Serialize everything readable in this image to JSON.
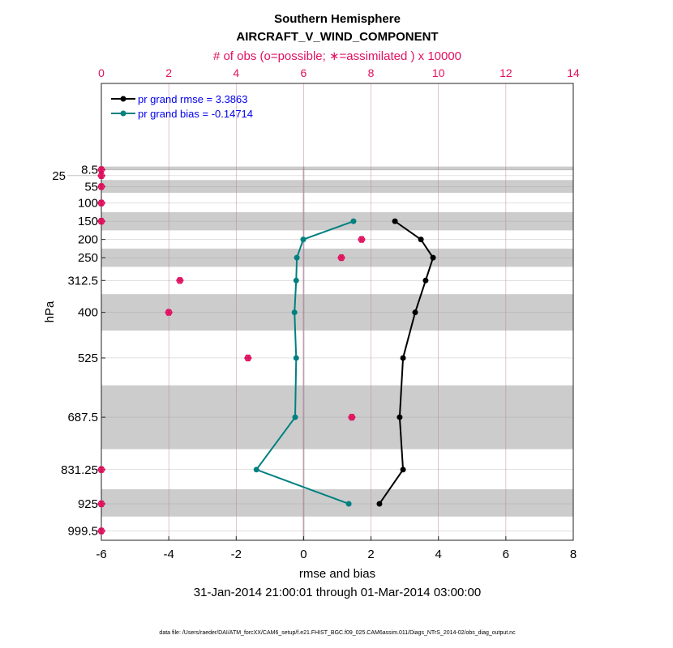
{
  "chart_data": {
    "type": "line",
    "title": "Southern Hemisphere",
    "subtitle": "AIRCRAFT_V_WIND_COMPONENT",
    "top_axis_label": "# of obs (o=possible; ∗=assimilated ) x 10000",
    "xlabel": "rmse and bias",
    "ylabel": "hPa",
    "date_range": "31-Jan-2014 21:00:01 through 01-Mar-2014 03:00:00",
    "footer": "data file: /Users/raeder/DAI/ATM_forcXX/CAM6_setup/f.e21.FHIST_BGC.f09_025.CAM6assim.011/Diags_NTrS_2014-02/obs_diag_output.nc",
    "xlim": [
      -6,
      8
    ],
    "xticks": [
      "-6",
      "-4",
      "-2",
      "0",
      "2",
      "4",
      "6",
      "8"
    ],
    "top_xlim": [
      0,
      14
    ],
    "top_xticks": [
      "0",
      "2",
      "4",
      "6",
      "8",
      "10",
      "12",
      "14"
    ],
    "ylim_hpa": [
      -228,
      1025
    ],
    "levels": [
      8.5,
      25,
      55,
      100,
      150,
      200,
      250,
      312.5,
      400,
      525,
      687.5,
      831.25,
      925,
      999.5
    ],
    "level_labels": [
      "8.5",
      "25",
      "55",
      "100",
      "150",
      "200",
      "250",
      "312.5",
      "400",
      "525",
      "687.5",
      "831.25",
      "925",
      "999.5"
    ],
    "bands_hpa": [
      [
        0,
        10
      ],
      [
        37,
        72
      ],
      [
        125,
        175
      ],
      [
        225,
        275
      ],
      [
        350,
        450
      ],
      [
        600,
        775
      ],
      [
        885,
        960
      ]
    ],
    "series": [
      {
        "name": "pr grand rmse = 3.3863",
        "color": "#000000",
        "levels": [
          150,
          200,
          250,
          312.5,
          400,
          525,
          687.5,
          831.25,
          925
        ],
        "values": [
          2.71,
          3.48,
          3.84,
          3.62,
          3.31,
          2.95,
          2.85,
          2.95,
          2.25
        ]
      },
      {
        "name": "pr grand bias = -0.14714",
        "color": "#008080",
        "levels": [
          150,
          200,
          250,
          312.5,
          400,
          525,
          687.5,
          831.25,
          925
        ],
        "values": [
          1.48,
          -0.01,
          -0.2,
          -0.22,
          -0.27,
          -0.22,
          -0.25,
          -1.4,
          1.34
        ]
      }
    ],
    "obs_count": {
      "color": "#e0115f",
      "levels": [
        8.5,
        25,
        55,
        100,
        150,
        200,
        250,
        312.5,
        400,
        525,
        687.5,
        831.25,
        925,
        999.5
      ],
      "possible": [
        0,
        0,
        0,
        0,
        0,
        7.72,
        7.12,
        2.33,
        2.0,
        4.35,
        7.43,
        0,
        0,
        0
      ],
      "assimilated": [
        0,
        0,
        0,
        0,
        0,
        7.72,
        7.12,
        2.33,
        2.0,
        4.35,
        7.43,
        0,
        0,
        0
      ]
    }
  }
}
